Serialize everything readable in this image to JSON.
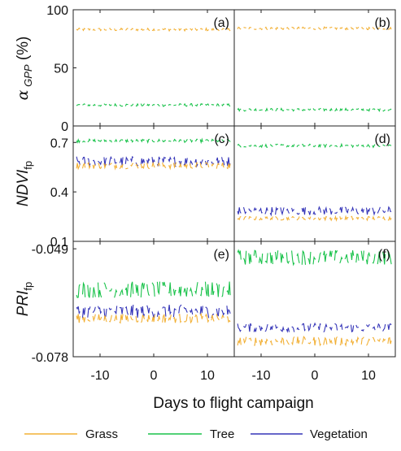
{
  "figure": {
    "x_axis_label": "Days to flight campaign",
    "x_tick_labels": [
      "-10",
      "0",
      "10"
    ],
    "x_ticks": [
      -10,
      0,
      10
    ],
    "legend": [
      {
        "name": "Grass",
        "color": "#F2B035"
      },
      {
        "name": "Tree",
        "color": "#19C24A"
      },
      {
        "name": "Vegetation",
        "color": "#3535B8"
      }
    ]
  },
  "chart_data": [
    {
      "type": "line",
      "panel": "(a)",
      "ylabel": "α GPP (%)",
      "xlim": [
        -15,
        15
      ],
      "ylim": [
        0,
        100
      ],
      "yticks": [
        0,
        50,
        100
      ],
      "ytick_labels": [
        "0",
        "50",
        "100"
      ],
      "series": [
        {
          "name": "Grass",
          "baseline": 83,
          "noise": 1.2
        },
        {
          "name": "Tree",
          "baseline": 18,
          "noise": 1.2
        }
      ]
    },
    {
      "type": "line",
      "panel": "(b)",
      "xlim": [
        -15,
        15
      ],
      "ylim": [
        0,
        100
      ],
      "series": [
        {
          "name": "Grass",
          "baseline": 84,
          "noise": 1.2
        },
        {
          "name": "Tree",
          "baseline": 14,
          "noise": 1.2
        }
      ]
    },
    {
      "type": "line",
      "panel": "(c)",
      "ylabel": "NDVIfp",
      "xlim": [
        -15,
        15
      ],
      "ylim": [
        0.1,
        0.8
      ],
      "yticks": [
        0.1,
        0.4,
        0.7
      ],
      "ytick_labels": [
        "0.1",
        "0.4",
        "0.7"
      ],
      "series": [
        {
          "name": "Tree",
          "baseline": 0.71,
          "noise": 0.01
        },
        {
          "name": "Vegetation",
          "baseline": 0.585,
          "noise": 0.03
        },
        {
          "name": "Grass",
          "baseline": 0.56,
          "noise": 0.02
        }
      ]
    },
    {
      "type": "line",
      "panel": "(d)",
      "xlim": [
        -15,
        15
      ],
      "ylim": [
        0.1,
        0.8
      ],
      "series": [
        {
          "name": "Tree",
          "baseline": 0.68,
          "noise": 0.01
        },
        {
          "name": "Vegetation",
          "baseline": 0.285,
          "noise": 0.025
        },
        {
          "name": "Grass",
          "baseline": 0.24,
          "noise": 0.012
        }
      ]
    },
    {
      "type": "line",
      "panel": "(e)",
      "ylabel": "PRIfp",
      "xlim": [
        -15,
        15
      ],
      "ylim": [
        -0.078,
        -0.047
      ],
      "yticks": [
        -0.078,
        -0.049
      ],
      "ytick_labels": [
        "-0.078",
        "-0.049"
      ],
      "series": [
        {
          "name": "Tree",
          "baseline": -0.06,
          "noise": 0.0022
        },
        {
          "name": "Vegetation",
          "baseline": -0.0658,
          "noise": 0.0018
        },
        {
          "name": "Grass",
          "baseline": -0.0677,
          "noise": 0.0012
        }
      ]
    },
    {
      "type": "line",
      "panel": "(f)",
      "xlim": [
        -15,
        15
      ],
      "ylim": [
        -0.078,
        -0.047
      ],
      "series": [
        {
          "name": "Tree",
          "baseline": -0.0513,
          "noise": 0.002
        },
        {
          "name": "Vegetation",
          "baseline": -0.0702,
          "noise": 0.0012
        },
        {
          "name": "Grass",
          "baseline": -0.0738,
          "noise": 0.0012
        }
      ]
    }
  ]
}
